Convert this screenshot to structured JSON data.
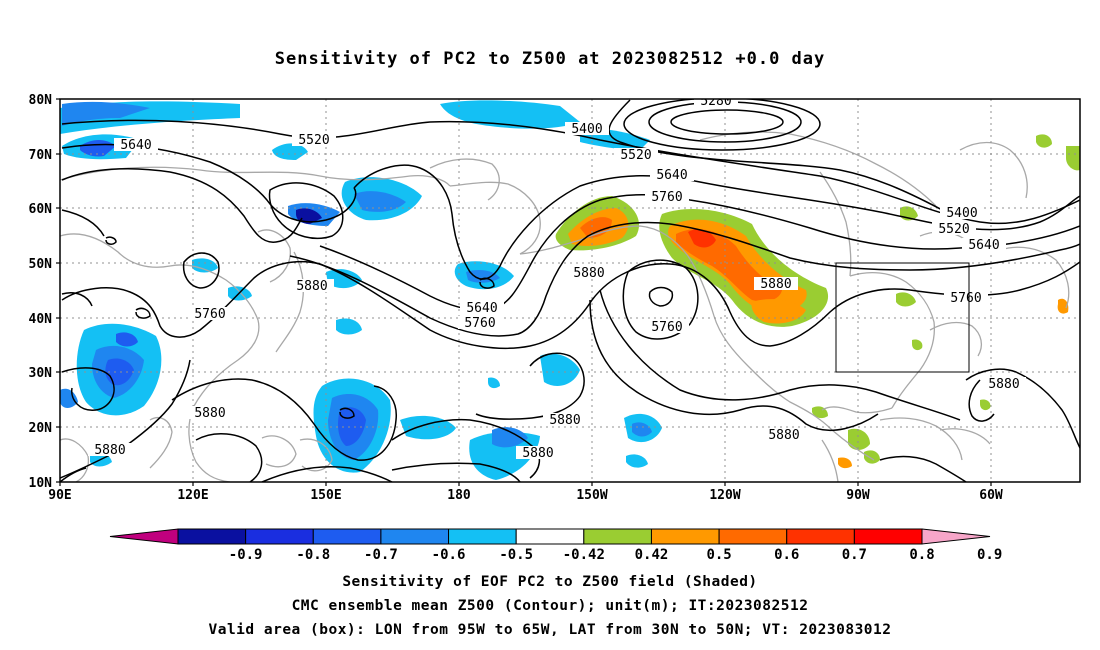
{
  "title": "Sensitivity of PC2 to Z500 at 2023082512 +0.0 day",
  "lat_labels": [
    "80N",
    "70N",
    "60N",
    "50N",
    "40N",
    "30N",
    "20N",
    "10N"
  ],
  "lon_labels": [
    "90E",
    "120E",
    "150E",
    "180",
    "150W",
    "120W",
    "90W",
    "60W"
  ],
  "colorbar": {
    "labels": [
      "-0.9",
      "-0.8",
      "-0.7",
      "-0.6",
      "-0.5",
      "-0.42",
      "0.42",
      "0.5",
      "0.6",
      "0.7",
      "0.8",
      "0.9"
    ],
    "colors": [
      "#c0007e",
      "#0a10a0",
      "#1a2ee0",
      "#1e5cf0",
      "#1f86f0",
      "#14c0f4",
      "#ffffff",
      "#9acd32",
      "#ff9900",
      "#ff6a00",
      "#ff3200",
      "#ff0000",
      "#f7a6c9"
    ]
  },
  "contour_labels": [
    "5280",
    "5400",
    "5520",
    "5640",
    "5760",
    "5880"
  ],
  "valid_box": {
    "lon_range": [
      "95W",
      "65W"
    ],
    "lat_range": [
      "30N",
      "50N"
    ]
  },
  "footer": {
    "line1": "Sensitivity of EOF PC2 to Z500 field (Shaded)",
    "line2": "CMC ensemble mean Z500 (Contour); unit(m); IT:2023082512",
    "line3": "Valid area (box): LON from 95W to 65W, LAT from 30N to 50N; VT: 2023083012"
  }
}
